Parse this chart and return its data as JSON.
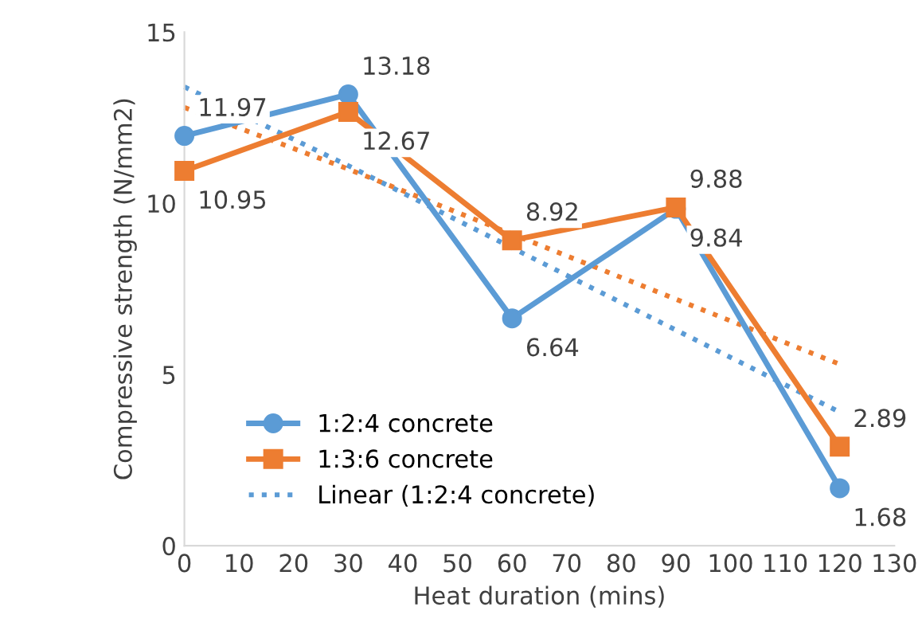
{
  "chart_data": {
    "type": "line",
    "xlabel": "Heat duration (mins)",
    "ylabel": "Compressive strength (N/mm2)",
    "x": [
      0,
      30,
      60,
      90,
      120
    ],
    "series": [
      {
        "name": "1:2:4 concrete",
        "color": "#5b9bd5",
        "marker": "circle",
        "values": [
          11.97,
          13.18,
          6.64,
          9.84,
          1.68
        ],
        "value_labels": [
          "11.97",
          "13.18",
          "6.64",
          "9.84",
          "1.68"
        ]
      },
      {
        "name": "1:3:6 concrete",
        "color": "#ed7d31",
        "marker": "square",
        "values": [
          10.95,
          12.67,
          8.92,
          9.88,
          2.89
        ],
        "value_labels": [
          "10.95",
          "12.67",
          "8.92",
          "9.88",
          "2.89"
        ]
      },
      {
        "name": "Linear (1:2:4 concrete)",
        "color": "#5b9bd5",
        "marker": "none",
        "line_style": "dotted",
        "values": [
          13.4,
          11.1,
          8.7,
          6.3,
          3.9
        ]
      },
      {
        "color": "#ed7d31",
        "marker": "none",
        "line_style": "dotted",
        "values": [
          12.8,
          11.0,
          9.1,
          7.2,
          5.3
        ]
      }
    ],
    "xlim": [
      0,
      130
    ],
    "xticks": [
      0,
      10,
      20,
      30,
      40,
      50,
      60,
      70,
      80,
      90,
      100,
      110,
      120,
      130
    ],
    "ylim": [
      0,
      15
    ],
    "yticks": [
      0,
      5,
      10,
      15
    ],
    "grid": false,
    "legend": "bottom left"
  }
}
